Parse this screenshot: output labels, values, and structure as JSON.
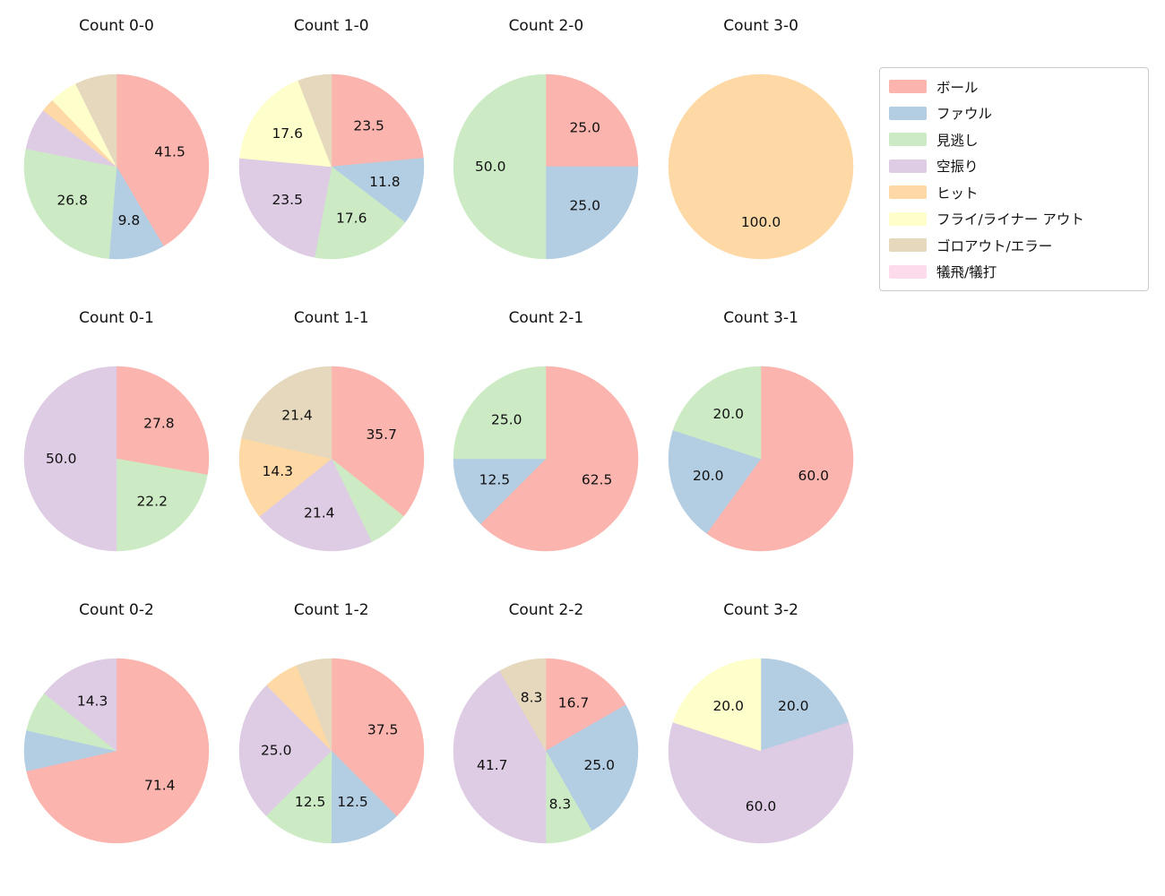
{
  "legend": {
    "items": [
      {
        "label": "ボール",
        "color": "#fbb4ae"
      },
      {
        "label": "ファウル",
        "color": "#b3cde3"
      },
      {
        "label": "見逃し",
        "color": "#ccebc5"
      },
      {
        "label": "空振り",
        "color": "#decbe4"
      },
      {
        "label": "ヒット",
        "color": "#fed9a6"
      },
      {
        "label": "フライ/ライナー アウト",
        "color": "#ffffcc"
      },
      {
        "label": "ゴロアウト/エラー",
        "color": "#e5d8bd"
      },
      {
        "label": "犠飛/犠打",
        "color": "#fddaec"
      }
    ]
  },
  "chart_data": [
    {
      "type": "pie",
      "title": "Count 0-0",
      "start_angle": 90,
      "clockwise": true,
      "slices": [
        {
          "category": "ボール",
          "value": 41.5,
          "label": "41.5"
        },
        {
          "category": "ファウル",
          "value": 9.8,
          "label": "9.8"
        },
        {
          "category": "見逃し",
          "value": 26.8,
          "label": "26.8"
        },
        {
          "category": "空振り",
          "value": 7.3,
          "label": ""
        },
        {
          "category": "ヒット",
          "value": 2.4,
          "label": ""
        },
        {
          "category": "フライ/ライナー アウト",
          "value": 4.9,
          "label": ""
        },
        {
          "category": "ゴロアウト/エラー",
          "value": 7.3,
          "label": ""
        }
      ]
    },
    {
      "type": "pie",
      "title": "Count 1-0",
      "start_angle": 90,
      "clockwise": true,
      "slices": [
        {
          "category": "ボール",
          "value": 23.5,
          "label": "23.5"
        },
        {
          "category": "ファウル",
          "value": 11.8,
          "label": "11.8"
        },
        {
          "category": "見逃し",
          "value": 17.6,
          "label": "17.6"
        },
        {
          "category": "空振り",
          "value": 23.5,
          "label": "23.5"
        },
        {
          "category": "フライ/ライナー アウト",
          "value": 17.6,
          "label": "17.6"
        },
        {
          "category": "ゴロアウト/エラー",
          "value": 5.9,
          "label": ""
        }
      ]
    },
    {
      "type": "pie",
      "title": "Count 2-0",
      "start_angle": 90,
      "clockwise": true,
      "slices": [
        {
          "category": "ボール",
          "value": 25.0,
          "label": "25.0"
        },
        {
          "category": "ファウル",
          "value": 25.0,
          "label": "25.0"
        },
        {
          "category": "見逃し",
          "value": 50.0,
          "label": "50.0"
        }
      ]
    },
    {
      "type": "pie",
      "title": "Count 3-0",
      "start_angle": 90,
      "clockwise": true,
      "slices": [
        {
          "category": "ヒット",
          "value": 100.0,
          "label": "100.0"
        }
      ]
    },
    {
      "type": "pie",
      "title": "Count 0-1",
      "start_angle": 90,
      "clockwise": true,
      "slices": [
        {
          "category": "ボール",
          "value": 27.8,
          "label": "27.8"
        },
        {
          "category": "見逃し",
          "value": 22.2,
          "label": "22.2"
        },
        {
          "category": "空振り",
          "value": 50.0,
          "label": "50.0"
        }
      ]
    },
    {
      "type": "pie",
      "title": "Count 1-1",
      "start_angle": 90,
      "clockwise": true,
      "slices": [
        {
          "category": "ボール",
          "value": 35.7,
          "label": "35.7"
        },
        {
          "category": "見逃し",
          "value": 7.1,
          "label": ""
        },
        {
          "category": "空振り",
          "value": 21.4,
          "label": "21.4"
        },
        {
          "category": "ヒット",
          "value": 14.3,
          "label": "14.3"
        },
        {
          "category": "ゴロアウト/エラー",
          "value": 21.4,
          "label": "21.4"
        }
      ]
    },
    {
      "type": "pie",
      "title": "Count 2-1",
      "start_angle": 90,
      "clockwise": true,
      "slices": [
        {
          "category": "ボール",
          "value": 62.5,
          "label": "62.5"
        },
        {
          "category": "ファウル",
          "value": 12.5,
          "label": "12.5"
        },
        {
          "category": "見逃し",
          "value": 25.0,
          "label": "25.0"
        }
      ]
    },
    {
      "type": "pie",
      "title": "Count 3-1",
      "start_angle": 90,
      "clockwise": true,
      "slices": [
        {
          "category": "ボール",
          "value": 60.0,
          "label": "60.0"
        },
        {
          "category": "ファウル",
          "value": 20.0,
          "label": "20.0"
        },
        {
          "category": "見逃し",
          "value": 20.0,
          "label": "20.0"
        }
      ]
    },
    {
      "type": "pie",
      "title": "Count 0-2",
      "start_angle": 90,
      "clockwise": true,
      "slices": [
        {
          "category": "ボール",
          "value": 71.4,
          "label": "71.4"
        },
        {
          "category": "ファウル",
          "value": 7.1,
          "label": ""
        },
        {
          "category": "見逃し",
          "value": 7.1,
          "label": ""
        },
        {
          "category": "空振り",
          "value": 14.3,
          "label": "14.3"
        }
      ]
    },
    {
      "type": "pie",
      "title": "Count 1-2",
      "start_angle": 90,
      "clockwise": true,
      "slices": [
        {
          "category": "ボール",
          "value": 37.5,
          "label": "37.5"
        },
        {
          "category": "ファウル",
          "value": 12.5,
          "label": "12.5"
        },
        {
          "category": "見逃し",
          "value": 12.5,
          "label": "12.5"
        },
        {
          "category": "空振り",
          "value": 25.0,
          "label": "25.0"
        },
        {
          "category": "ヒット",
          "value": 6.2,
          "label": ""
        },
        {
          "category": "ゴロアウト/エラー",
          "value": 6.2,
          "label": ""
        }
      ]
    },
    {
      "type": "pie",
      "title": "Count 2-2",
      "start_angle": 90,
      "clockwise": true,
      "slices": [
        {
          "category": "ボール",
          "value": 16.7,
          "label": "16.7"
        },
        {
          "category": "ファウル",
          "value": 25.0,
          "label": "25.0"
        },
        {
          "category": "見逃し",
          "value": 8.3,
          "label": "8.3"
        },
        {
          "category": "空振り",
          "value": 41.7,
          "label": "41.7"
        },
        {
          "category": "ゴロアウト/エラー",
          "value": 8.3,
          "label": "8.3"
        }
      ]
    },
    {
      "type": "pie",
      "title": "Count 3-2",
      "start_angle": 90,
      "clockwise": true,
      "slices": [
        {
          "category": "ファウル",
          "value": 20.0,
          "label": "20.0"
        },
        {
          "category": "空振り",
          "value": 60.0,
          "label": "60.0"
        },
        {
          "category": "フライ/ライナー アウト",
          "value": 20.0,
          "label": "20.0"
        }
      ]
    }
  ]
}
